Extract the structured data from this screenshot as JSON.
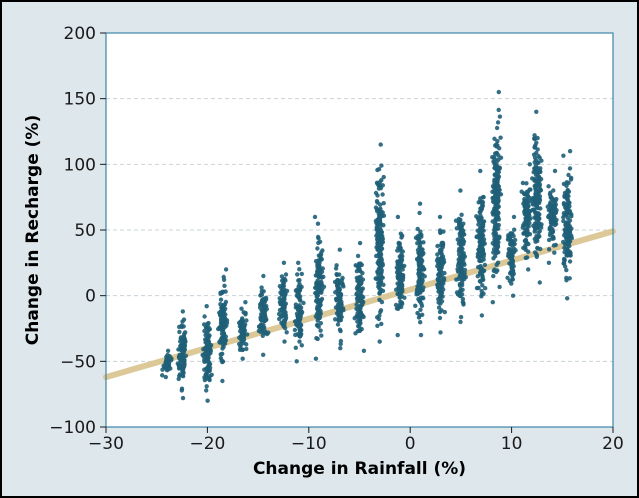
{
  "chart_data": {
    "type": "scatter",
    "title": "",
    "xlabel": "Change in Rainfall (%)",
    "ylabel": "Change in Recharge (%)",
    "xlim": [
      -30,
      20
    ],
    "ylim": [
      -100,
      200
    ],
    "x_ticks": [
      -30,
      -20,
      -10,
      0,
      10,
      20
    ],
    "y_ticks": [
      -100,
      -50,
      0,
      50,
      100,
      150,
      200
    ],
    "grid": "horizontal dashed",
    "legend": "none",
    "colors": {
      "points": "#1f5f78",
      "trend": "#d9c48c",
      "plot_background": "#ffffff",
      "frame_background": "#dde7ec",
      "grid": "#c9d3d9",
      "axis": "#3c86a8"
    },
    "trend_line": {
      "x": [
        -30,
        20
      ],
      "y": [
        -62,
        49
      ]
    },
    "point_clusters": [
      {
        "x": -24,
        "y_range": [
          -62,
          -42
        ]
      },
      {
        "x": -22.5,
        "y_range": [
          -78,
          -12
        ]
      },
      {
        "x": -20,
        "y_range": [
          -80,
          -8
        ]
      },
      {
        "x": -18.5,
        "y_range": [
          -65,
          20
        ]
      },
      {
        "x": -16.5,
        "y_range": [
          -48,
          -5
        ]
      },
      {
        "x": -14.5,
        "y_range": [
          -45,
          15
        ]
      },
      {
        "x": -12.5,
        "y_range": [
          -35,
          25
        ]
      },
      {
        "x": -11,
        "y_range": [
          -50,
          25
        ]
      },
      {
        "x": -9,
        "y_range": [
          -48,
          60
        ]
      },
      {
        "x": -7,
        "y_range": [
          -40,
          35
        ]
      },
      {
        "x": -5,
        "y_range": [
          -42,
          40
        ]
      },
      {
        "x": -3,
        "y_range": [
          -35,
          115
        ]
      },
      {
        "x": -1,
        "y_range": [
          -30,
          60
        ]
      },
      {
        "x": 1,
        "y_range": [
          -30,
          70
        ]
      },
      {
        "x": 3,
        "y_range": [
          -28,
          60
        ]
      },
      {
        "x": 5,
        "y_range": [
          -20,
          80
        ]
      },
      {
        "x": 7,
        "y_range": [
          -15,
          95
        ]
      },
      {
        "x": 8.5,
        "y_range": [
          -5,
          155
        ]
      },
      {
        "x": 10,
        "y_range": [
          0,
          60
        ]
      },
      {
        "x": 11.5,
        "y_range": [
          20,
          100
        ]
      },
      {
        "x": 12.5,
        "y_range": [
          10,
          140
        ]
      },
      {
        "x": 14,
        "y_range": [
          25,
          95
        ]
      },
      {
        "x": 15.5,
        "y_range": [
          -2,
          110
        ]
      }
    ]
  }
}
